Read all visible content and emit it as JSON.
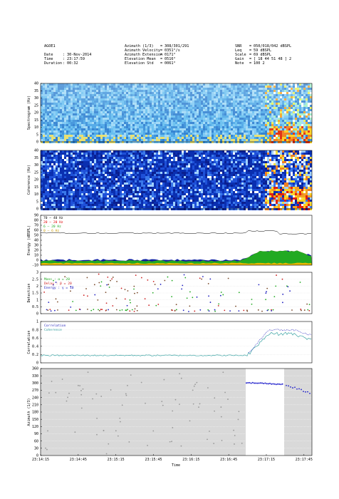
{
  "header": {
    "station": "AGOE1",
    "date_label": "Date",
    "date_value": "30-Nov-2014",
    "time_label": "Time",
    "time_value": "23:17:59",
    "duration_label": "Duration",
    "duration_value": "00:32",
    "azimuth_label": "Azimuth (1/3)",
    "azimuth_value": "308/301/291",
    "az_velocity_label": "Azimuth Velocity",
    "az_velocity_value": "0351°/s",
    "az_extension_label": "Azimuth Extension",
    "az_extension_value": "0171°",
    "elev_mean_label": "Elevation Mean",
    "elev_mean_value": "0516°",
    "elev_std_label": "Elevation Std",
    "elev_std_value": "0061°",
    "snr_label": "SNR",
    "snr_value": "050/018/042 dBSPL",
    "leq_label": "Leq",
    "leq_value": "59 dBSPL",
    "scale_label": "Scale",
    "scale_value": "69 dBSPL",
    "gain_label": "Gain",
    "gain_value": "[ 18 44 51 48 ] 2",
    "note_label": "Note",
    "note_value": "100 2"
  },
  "colors": {
    "band_70_40": "#000000",
    "band_20_20": "#e00000",
    "band_6_20": "#22aa22",
    "band_0_6": "#e8b800",
    "detection_blue": "#2020c0",
    "detection_red": "#cc2020",
    "coherence_line": "#3aa3a3",
    "correlation_line": "#3030c0",
    "azimuth_dot": "#2222cc"
  },
  "chart_data": [
    {
      "type": "heatmap",
      "ylabel": "Spectrogram (Hz)",
      "ylim": [
        0,
        40
      ],
      "yticks": [
        0,
        5,
        10,
        15,
        20,
        25,
        30,
        35,
        40
      ]
    },
    {
      "type": "heatmap",
      "ylabel": "Coherence (Hz)",
      "ylim": [
        0,
        40
      ],
      "yticks": [
        0,
        5,
        10,
        15,
        20,
        25,
        30,
        35,
        40
      ]
    },
    {
      "type": "area",
      "ylabel": "Energy (dBSPL)",
      "ylim": [
        -10,
        90
      ],
      "yticks": [
        -10,
        0,
        10,
        20,
        30,
        40,
        50,
        60,
        70,
        80,
        90
      ],
      "legend": [
        "70 – 40 Hz",
        "20 – 20 Hz",
        "6 – 20 Hz",
        "0 – 6 Hz"
      ],
      "legend_position": "top-left"
    },
    {
      "type": "scatter",
      "ylabel": "Detection",
      "ylim": [
        0,
        3
      ],
      "yticks": [
        "0",
        "0.5",
        "1",
        "1.5",
        "2",
        "2.5",
        "3"
      ],
      "legend": [
        "Mans  : α = 20",
        "Delay : β = 20",
        "Energy : γ = 10"
      ],
      "legend_position": "top-left"
    },
    {
      "type": "line",
      "ylabel": "Correlation",
      "ylim": [
        0,
        1
      ],
      "yticks": [
        "0",
        "0.2",
        "0.4",
        "0.6",
        "0.8",
        "1"
      ],
      "legend": [
        "Correlation",
        "Coherence"
      ],
      "legend_position": "top-left"
    },
    {
      "type": "scatter",
      "ylabel": "Azimuth (1/3)",
      "ylim": [
        0,
        360
      ],
      "yticks": [
        0,
        30,
        60,
        90,
        120,
        150,
        180,
        210,
        240,
        270,
        300,
        330,
        360
      ],
      "xlabel": "Time",
      "xticks": [
        "23:14:15",
        "23:14:45",
        "23:15:15",
        "23:15:45",
        "23:16:15",
        "23:16:45",
        "23:17:15",
        "23:17:45"
      ]
    }
  ]
}
